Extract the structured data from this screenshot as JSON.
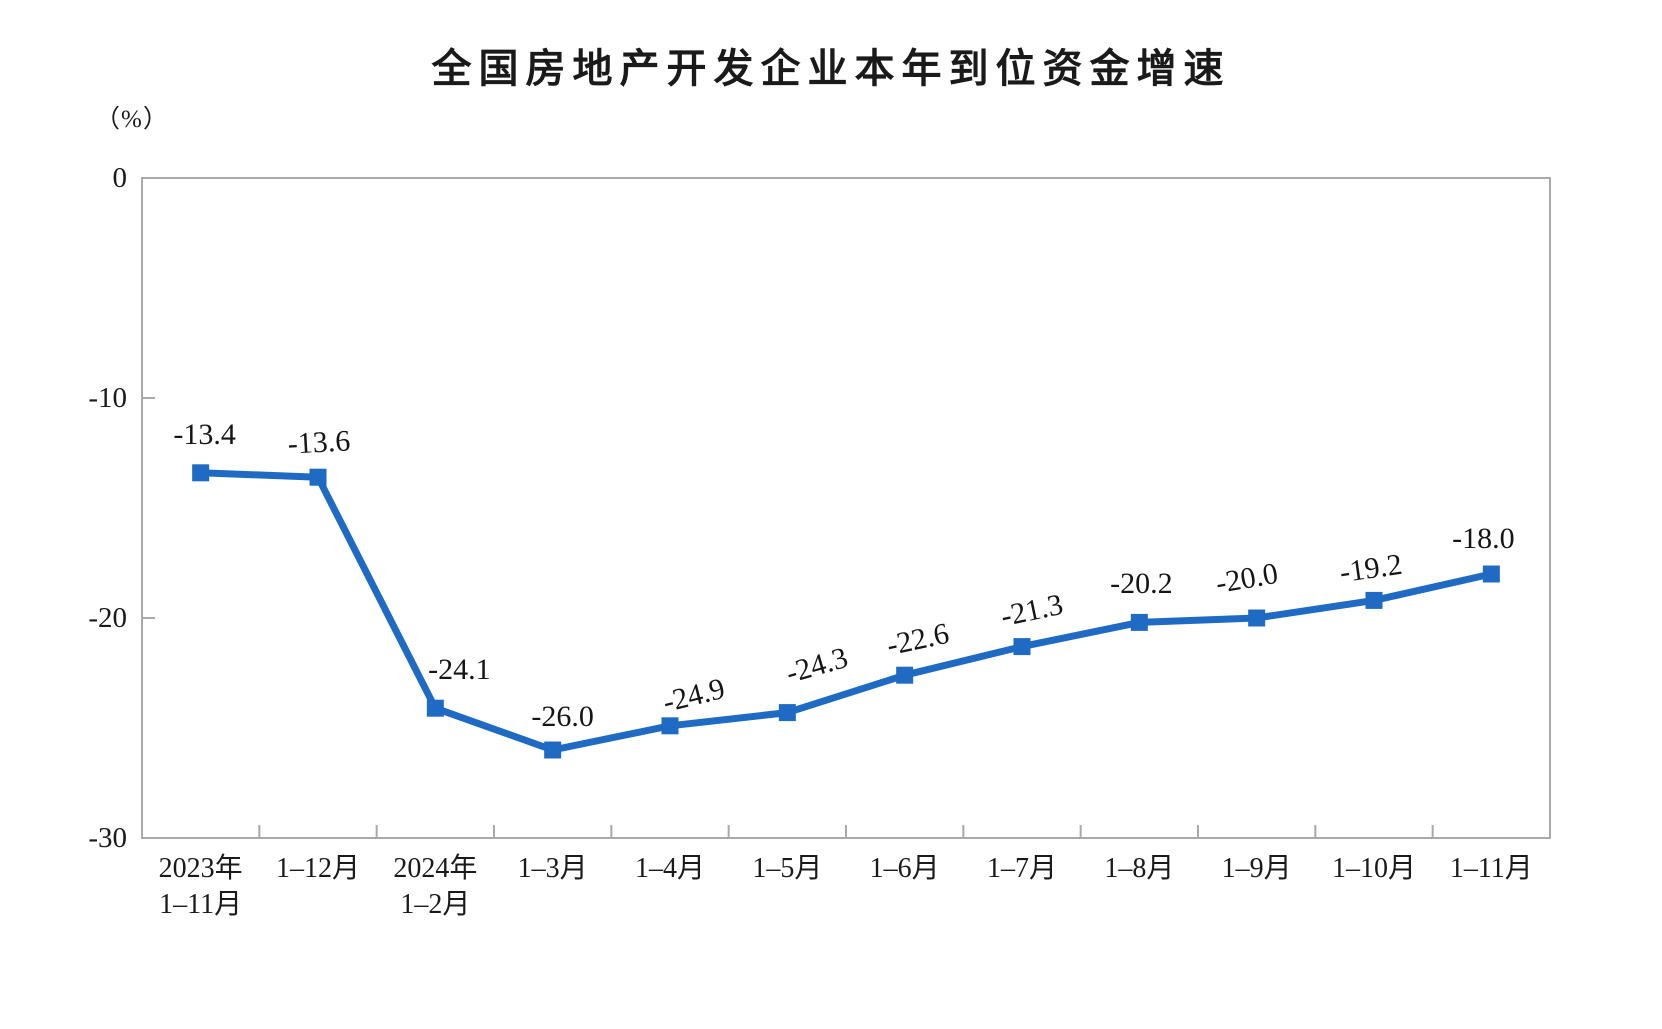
{
  "chart_data": {
    "type": "line",
    "title": "全国房地产开发企业本年到位资金增速",
    "unit_label": "（%）",
    "categories": [
      "2023年\n1–11月",
      "1–12月",
      "2024年\n1–2月",
      "1–3月",
      "1–4月",
      "1–5月",
      "1–6月",
      "1–7月",
      "1–8月",
      "1–9月",
      "1–10月",
      "1–11月"
    ],
    "values": [
      -13.4,
      -13.6,
      -24.1,
      -26.0,
      -24.9,
      -24.3,
      -22.6,
      -21.3,
      -20.2,
      -20.0,
      -19.2,
      -18.0
    ],
    "value_labels": [
      "-13.4",
      "-13.6",
      "-24.1",
      "-26.0",
      "-24.9",
      "-24.3",
      "-22.6",
      "-21.3",
      "-20.2",
      "-20.0",
      "-19.2",
      "-18.0"
    ],
    "ylim": [
      -30,
      0
    ],
    "yticks": [
      0,
      -10,
      -20,
      -30
    ],
    "ytick_labels": [
      "0",
      "-10",
      "-20",
      "-30"
    ],
    "grid": false,
    "legend_position": "none",
    "marker_shape": "square",
    "colors": {
      "line": "#1f6bc4",
      "marker": "#1f6bc4",
      "axis": "#a9a9a9",
      "text": "#1a1a1a",
      "background": "#ffffff"
    }
  }
}
